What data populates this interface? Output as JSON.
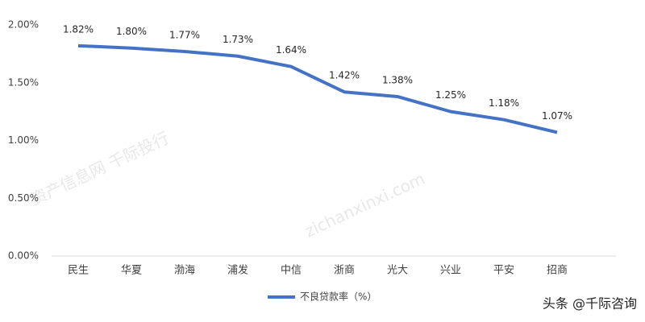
{
  "chart_data": {
    "type": "line",
    "categories": [
      "民生",
      "华夏",
      "渤海",
      "浦发",
      "中信",
      "浙商",
      "光大",
      "兴业",
      "平安",
      "招商"
    ],
    "series": [
      {
        "name": "不良贷款率（%）",
        "color": "#4472c4",
        "values": [
          1.82,
          1.8,
          1.77,
          1.73,
          1.64,
          1.42,
          1.38,
          1.25,
          1.18,
          1.07
        ],
        "value_labels": [
          "1.82%",
          "1.80%",
          "1.77%",
          "1.73%",
          "1.64%",
          "1.42%",
          "1.38%",
          "1.25%",
          "1.18%",
          "1.07%"
        ]
      }
    ],
    "ylim": [
      0,
      2
    ],
    "yticks": [
      {
        "value": 0,
        "label": "0.00%"
      },
      {
        "value": 0.5,
        "label": "0.50%"
      },
      {
        "value": 1,
        "label": "1.00%"
      },
      {
        "value": 1.5,
        "label": "1.50%"
      },
      {
        "value": 2,
        "label": "2.00%"
      }
    ],
    "legend": "bottom",
    "watermarks": [
      "资产信息网 千际投行",
      "zichanxinxi.com"
    ],
    "credit": "头条 @千际咨询"
  }
}
